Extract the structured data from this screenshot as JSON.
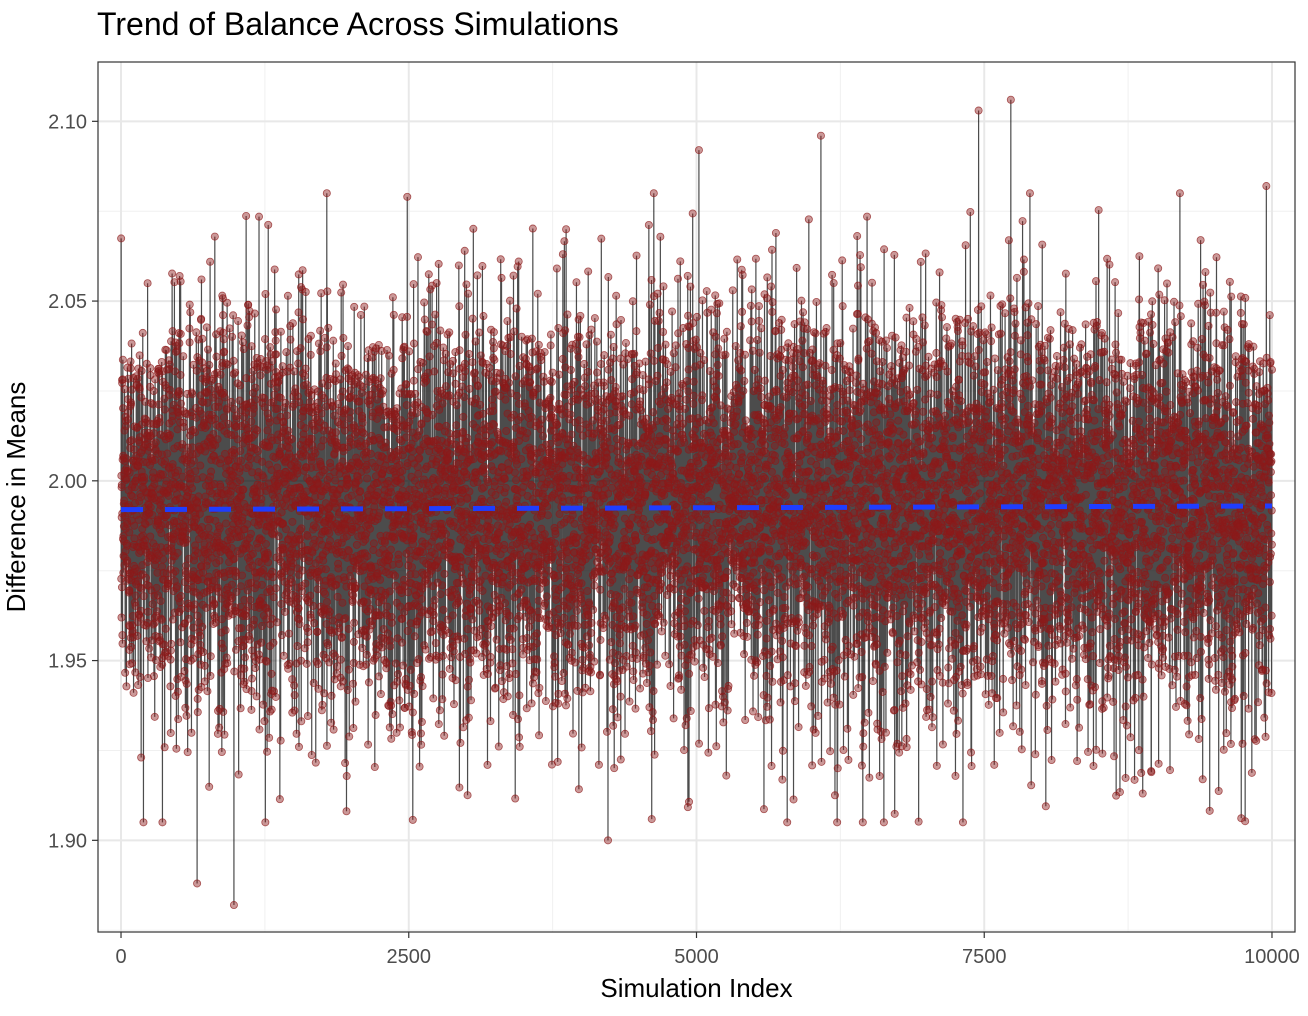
{
  "chart_data": {
    "type": "line",
    "title": "Trend of Balance Across Simulations",
    "xlabel": "Simulation Index",
    "ylabel": "Difference in Means",
    "xlim": [
      -200,
      10200
    ],
    "ylim": [
      1.8745,
      2.1165
    ],
    "x_ticks": [
      0,
      2500,
      5000,
      7500,
      10000
    ],
    "x_tick_labels": [
      "0",
      "2500",
      "5000",
      "7500",
      "10000"
    ],
    "y_ticks": [
      1.9,
      1.95,
      2.0,
      2.05,
      2.1
    ],
    "y_tick_labels": [
      "1.90",
      "1.95",
      "2.00",
      "2.05",
      "2.10"
    ],
    "grid": true,
    "series": [
      {
        "kind": "line+points",
        "n": 10000,
        "line_color": "#000000",
        "point_color": "#8b1a1a",
        "center": 1.9925,
        "spread_sd": 0.027,
        "notable_points": [
          {
            "x": 660,
            "y": 1.888
          },
          {
            "x": 980,
            "y": 1.882
          },
          {
            "x": 4230,
            "y": 1.9
          },
          {
            "x": 7450,
            "y": 2.103
          },
          {
            "x": 7730,
            "y": 2.106
          },
          {
            "x": 6080,
            "y": 2.096
          },
          {
            "x": 5020,
            "y": 2.092
          },
          {
            "x": 9950,
            "y": 2.082
          }
        ]
      },
      {
        "kind": "trend",
        "style": "dashed",
        "color": "#1f3dff",
        "x": [
          0,
          10000
        ],
        "y": [
          1.992,
          1.993
        ]
      }
    ]
  }
}
